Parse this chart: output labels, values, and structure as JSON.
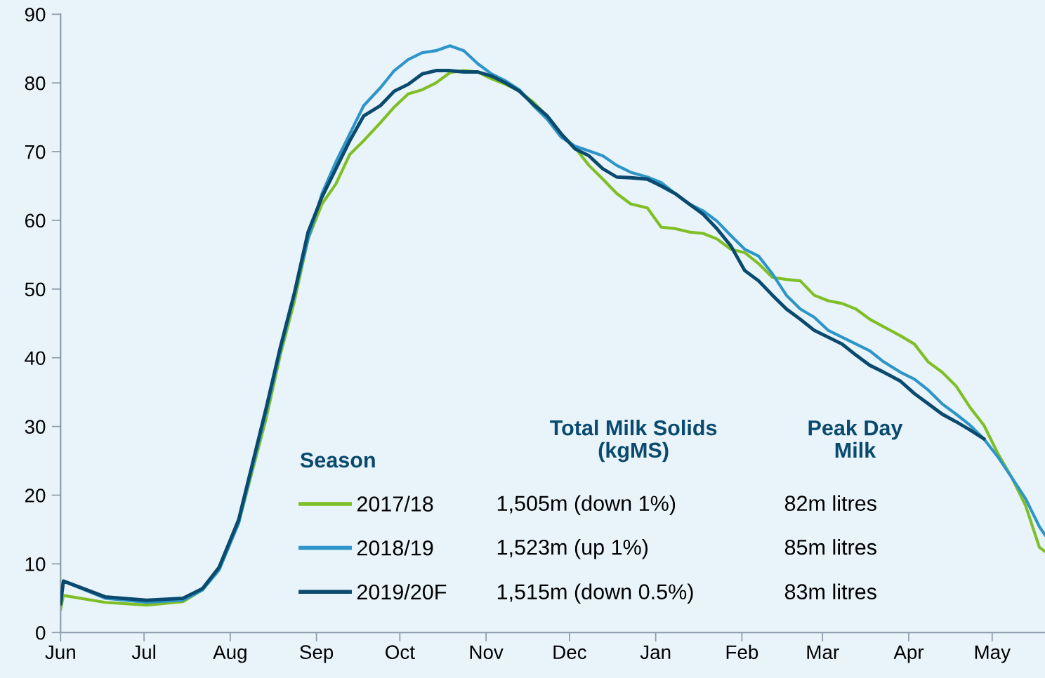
{
  "chart_data": {
    "type": "line",
    "x": [
      "2019-06-01",
      "2019-06-02",
      "2019-06-17",
      "2019-07-02",
      "2019-07-15",
      "2019-07-22",
      "2019-07-28",
      "2019-08-04",
      "2019-08-09",
      "2019-08-14",
      "2019-08-19",
      "2019-08-24",
      "2019-08-29",
      "2019-09-03",
      "2019-09-08",
      "2019-09-13",
      "2019-09-18",
      "2019-09-24",
      "2019-09-29",
      "2019-10-04",
      "2019-10-09",
      "2019-10-14",
      "2019-10-19",
      "2019-10-24",
      "2019-10-29",
      "2019-11-03",
      "2019-11-08",
      "2019-11-13",
      "2019-11-18",
      "2019-11-23",
      "2019-11-28",
      "2019-12-03",
      "2019-12-08",
      "2019-12-13",
      "2019-12-18",
      "2019-12-23",
      "2019-12-29",
      "2020-01-03",
      "2020-01-08",
      "2020-01-13",
      "2020-01-18",
      "2020-01-23",
      "2020-01-28",
      "2020-02-02",
      "2020-02-07",
      "2020-02-12",
      "2020-02-17",
      "2020-02-22",
      "2020-02-27",
      "2020-03-03",
      "2020-03-08",
      "2020-03-13",
      "2020-03-18",
      "2020-03-23",
      "2020-03-29",
      "2020-04-03",
      "2020-04-08",
      "2020-04-13",
      "2020-04-18",
      "2020-04-23",
      "2020-04-28",
      "2020-05-03",
      "2020-05-08",
      "2020-05-13",
      "2020-05-18",
      "2020-05-20"
    ],
    "series": [
      {
        "name": "2017/18",
        "color": "#7fbf26",
        "values": [
          3.4,
          5.4,
          4.4,
          4.0,
          4.5,
          6.2,
          9.3,
          15.9,
          23.6,
          31.3,
          40.4,
          48.1,
          57.3,
          62.4,
          65.3,
          69.6,
          71.6,
          74.2,
          76.5,
          78.4,
          79.0,
          80.0,
          81.5,
          81.8,
          81.6,
          80.6,
          79.8,
          78.8,
          77.2,
          75.2,
          72.6,
          70.6,
          68.0,
          66.0,
          63.9,
          62.4,
          61.8,
          59.0,
          58.8,
          58.3,
          58.1,
          57.3,
          55.8,
          55.3,
          53.7,
          51.7,
          51.4,
          51.2,
          49.1,
          48.3,
          47.9,
          47.1,
          45.6,
          44.5,
          43.2,
          42.0,
          39.4,
          37.9,
          35.9,
          32.8,
          30.2,
          26.1,
          22.6,
          18.5,
          12.4,
          11.8
        ]
      },
      {
        "name": "2018/19",
        "color": "#2e95c8",
        "values": [
          4.4,
          7.5,
          5.0,
          4.4,
          4.7,
          6.2,
          9.1,
          15.9,
          24.1,
          32.3,
          41.0,
          49.1,
          57.3,
          63.9,
          68.5,
          72.6,
          76.7,
          79.3,
          81.8,
          83.4,
          84.4,
          84.7,
          85.4,
          84.7,
          82.8,
          81.3,
          80.3,
          79.0,
          76.7,
          74.7,
          72.1,
          70.8,
          70.1,
          69.4,
          68.0,
          67.0,
          66.3,
          65.5,
          63.9,
          62.4,
          61.4,
          59.9,
          57.8,
          55.8,
          54.8,
          52.2,
          49.1,
          47.1,
          45.9,
          44.0,
          43.0,
          42.0,
          41.0,
          39.4,
          37.9,
          36.9,
          35.3,
          33.3,
          31.8,
          30.2,
          28.2,
          25.6,
          22.6,
          19.5,
          15.4,
          14.2
        ]
      },
      {
        "name": "2019/20F",
        "color": "#0a4a6e",
        "values": [
          4.2,
          7.5,
          5.2,
          4.7,
          5.0,
          6.4,
          9.5,
          16.4,
          24.6,
          32.8,
          41.5,
          49.3,
          58.3,
          63.4,
          67.5,
          71.6,
          75.2,
          76.7,
          78.8,
          79.8,
          81.3,
          81.8,
          81.8,
          81.6,
          81.6,
          81.0,
          80.0,
          78.8,
          76.9,
          75.2,
          72.6,
          70.4,
          69.4,
          67.5,
          66.3,
          66.2,
          66.0,
          65.0,
          63.9,
          62.4,
          60.9,
          58.8,
          56.3,
          52.7,
          51.2,
          49.1,
          47.1,
          45.6,
          44.0,
          43.0,
          42.0,
          40.4,
          38.9,
          37.9,
          36.6,
          34.8,
          33.3,
          31.8,
          30.7,
          29.5,
          28.2,
          null,
          null,
          null,
          null,
          null
        ]
      }
    ],
    "xlim": [
      "2019-06-01",
      "2020-05-20"
    ],
    "xticks": [
      {
        "value": "2019-06-01",
        "label": "Jun"
      },
      {
        "value": "2019-07-01",
        "label": "Jul"
      },
      {
        "value": "2019-08-01",
        "label": "Aug"
      },
      {
        "value": "2019-09-01",
        "label": "Sep"
      },
      {
        "value": "2019-10-01",
        "label": "Oct"
      },
      {
        "value": "2019-11-01",
        "label": "Nov"
      },
      {
        "value": "2019-12-01",
        "label": "Dec"
      },
      {
        "value": "2020-01-01",
        "label": "Jan"
      },
      {
        "value": "2020-02-01",
        "label": "Feb"
      },
      {
        "value": "2020-03-01",
        "label": "Mar"
      },
      {
        "value": "2020-04-01",
        "label": "Apr"
      },
      {
        "value": "2020-05-01",
        "label": "May"
      }
    ],
    "ylim": [
      0,
      90
    ],
    "yticks": [
      0,
      10,
      20,
      30,
      40,
      50,
      60,
      70,
      80,
      90
    ],
    "legend": "bottom",
    "grid": false,
    "marker": "none",
    "line_style": "solid",
    "annotations": [
      "Season",
      "Total Milk Solids\n(kgMS)",
      "Peak Day\nMilk",
      "1,505m (down 1%)",
      "82m litres",
      "1,523m (up 1%)",
      "85m litres",
      "1,515m (down 0.5%)",
      "83m litres"
    ]
  }
}
